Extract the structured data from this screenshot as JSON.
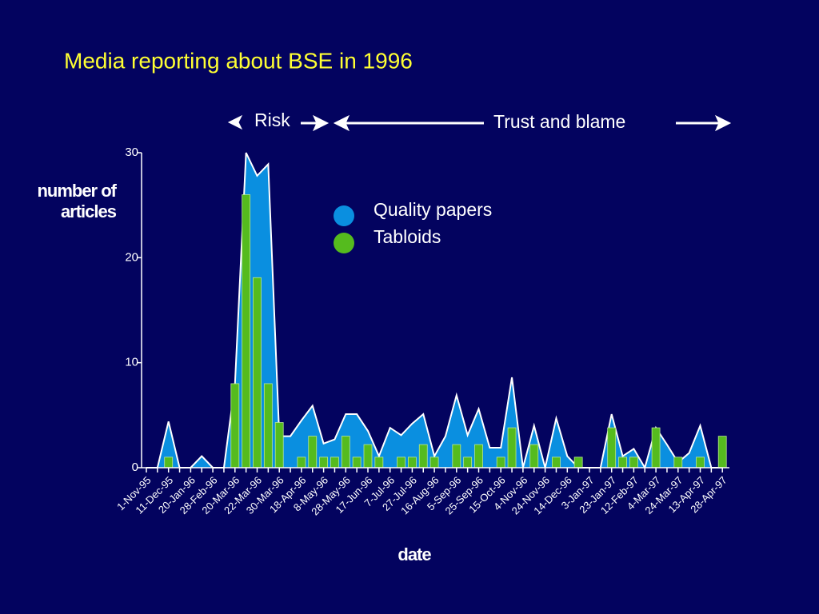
{
  "chart_data": {
    "type": "combo",
    "title": "Media reporting about BSE in 1996",
    "annotations": [
      "Risk",
      "Trust and blame"
    ],
    "x_label": "date",
    "y_label": "number of articles",
    "categories": [
      "1-Nov-95",
      null,
      "11-Dec-95",
      null,
      "20-Jan-96",
      null,
      "28-Feb-96",
      null,
      "20-Mar-96",
      null,
      "22-Mar-96",
      null,
      "30-Mar-96",
      null,
      "18-Apr-96",
      null,
      "8-May-96",
      null,
      "28-May-96",
      null,
      "17-Jun-96",
      null,
      "7-Jul-96",
      null,
      "27-Jul-96",
      null,
      "16-Aug-96",
      null,
      "5-Sep-96",
      null,
      "25-Sep-96",
      null,
      "15-Oct-96",
      null,
      "4-Nov-96",
      null,
      "24-Nov-96",
      null,
      "14-Dec-96",
      null,
      "3-Jan-97",
      null,
      "23-Jan-97",
      null,
      "12-Feb-97",
      null,
      "4-Mar-97",
      null,
      "24-Mar-97",
      null,
      "13-Apr-97",
      null,
      "28-Apr-97"
    ],
    "series": [
      {
        "name": "Quality papers",
        "type": "area",
        "color": "#0a8fe0",
        "values": [
          0,
          0,
          4.4,
          0,
          0,
          1.1,
          0,
          0,
          8,
          30,
          27.8,
          28.9,
          3,
          3,
          4.5,
          5.9,
          2.3,
          2.7,
          5.1,
          5.1,
          3.5,
          1.1,
          3.8,
          3.1,
          4.2,
          5.1,
          1.1,
          3,
          6.9,
          3.1,
          5.6,
          1.9,
          1.9,
          8.6,
          0,
          4,
          0,
          4.7,
          1.1,
          0,
          0,
          0,
          5.1,
          1.1,
          1.8,
          0,
          3.8,
          2.2,
          0.5,
          1.4,
          4,
          0,
          0
        ]
      },
      {
        "name": "Tabloids",
        "type": "bar",
        "color": "#55bb1e",
        "values": [
          0,
          0,
          1,
          0,
          0,
          0,
          0,
          0,
          8,
          26,
          18.1,
          8,
          4.3,
          0,
          1,
          3,
          1,
          1,
          3,
          1,
          2.2,
          1,
          0,
          1,
          1,
          2.2,
          1,
          0,
          2.2,
          1,
          2.2,
          0,
          1,
          3.8,
          0,
          2.2,
          0,
          1,
          0,
          1,
          0,
          0,
          3.8,
          1,
          1,
          0,
          3.8,
          0,
          1,
          0,
          1,
          0,
          3
        ]
      }
    ],
    "ylim": [
      0,
      30
    ],
    "yticks": [
      0,
      10,
      20,
      30
    ],
    "grid": false
  }
}
